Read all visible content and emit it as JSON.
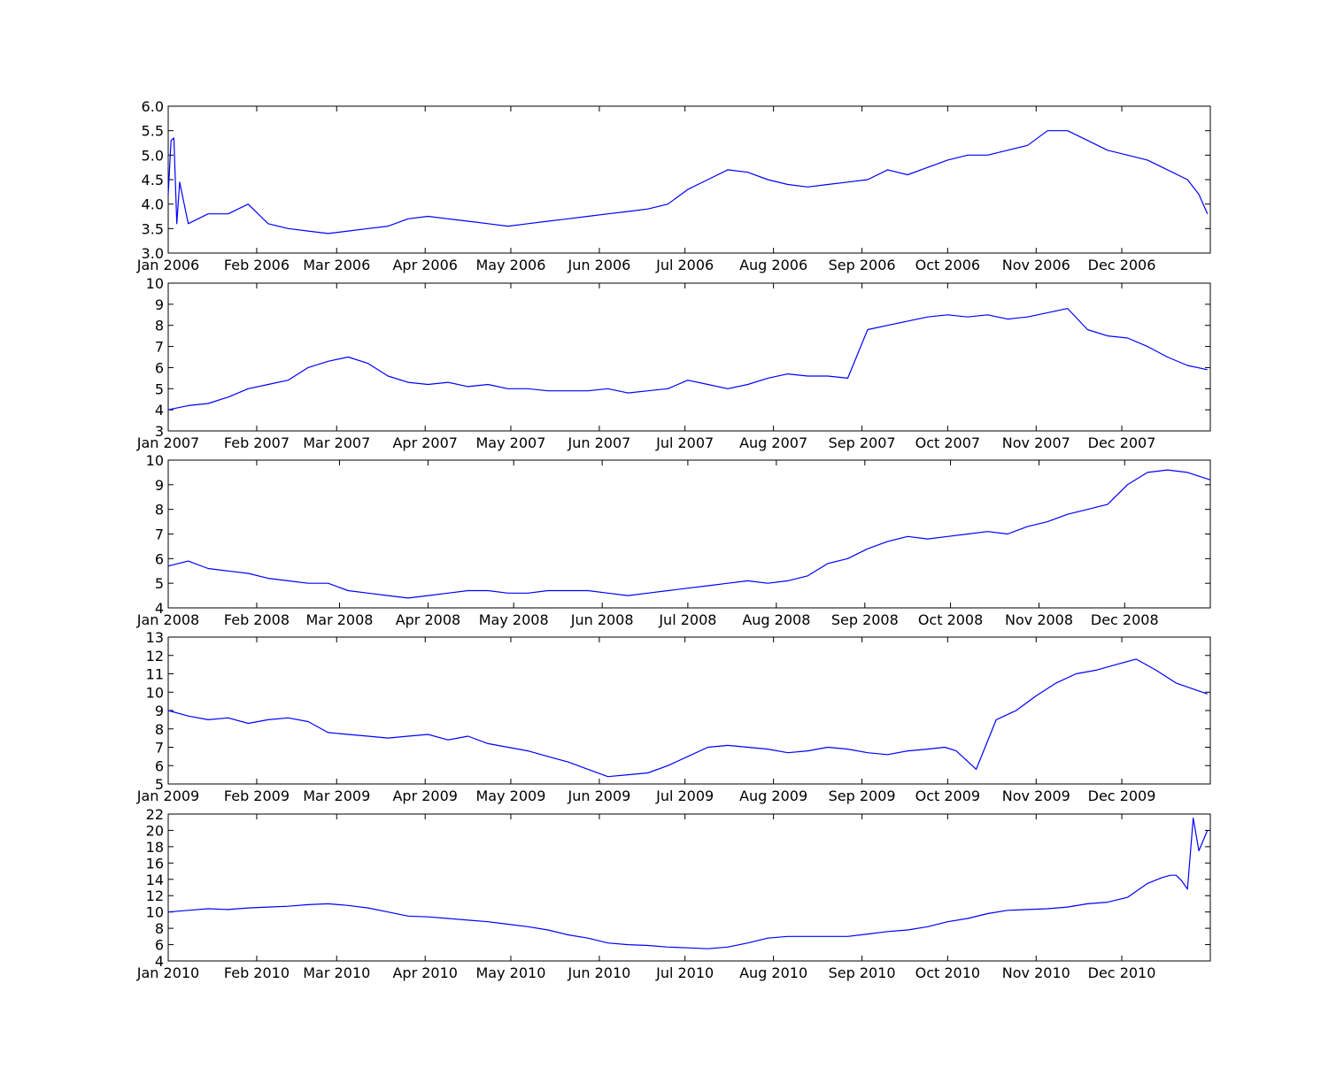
{
  "colors": {
    "series": "#0000ff",
    "background": "#ffffff",
    "axes": "#000000"
  },
  "chart_data": [
    {
      "type": "line",
      "title": "",
      "xlabel": "",
      "ylabel": "",
      "grid": false,
      "x_ticks": [
        "Jan 2006",
        "Feb 2006",
        "Mar 2006",
        "Apr 2006",
        "May 2006",
        "Jun 2006",
        "Jul 2006",
        "Aug 2006",
        "Sep 2006",
        "Oct 2006",
        "Nov 2006",
        "Dec 2006"
      ],
      "y_ticks": [
        "3.0",
        "3.5",
        "4.0",
        "4.5",
        "5.0",
        "5.5",
        "6.0"
      ],
      "ylim": [
        3.0,
        6.0
      ],
      "series": [
        {
          "x": [
            "2006-01-01",
            "2006-01-02",
            "2006-01-03",
            "2006-01-04",
            "2006-01-05",
            "2006-01-08",
            "2006-01-15",
            "2006-01-22",
            "2006-01-29",
            "2006-02-05",
            "2006-02-12",
            "2006-02-19",
            "2006-02-26",
            "2006-03-05",
            "2006-03-12",
            "2006-03-19",
            "2006-03-26",
            "2006-04-02",
            "2006-04-09",
            "2006-04-16",
            "2006-04-23",
            "2006-04-30",
            "2006-05-07",
            "2006-05-14",
            "2006-05-21",
            "2006-05-28",
            "2006-06-04",
            "2006-06-11",
            "2006-06-18",
            "2006-06-25",
            "2006-07-02",
            "2006-07-09",
            "2006-07-16",
            "2006-07-23",
            "2006-07-30",
            "2006-08-06",
            "2006-08-13",
            "2006-08-20",
            "2006-08-27",
            "2006-09-03",
            "2006-09-10",
            "2006-09-17",
            "2006-09-24",
            "2006-10-01",
            "2006-10-08",
            "2006-10-15",
            "2006-10-22",
            "2006-10-29",
            "2006-11-05",
            "2006-11-12",
            "2006-11-19",
            "2006-11-26",
            "2006-12-03",
            "2006-12-10",
            "2006-12-17",
            "2006-12-24",
            "2006-12-28",
            "2006-12-31"
          ],
          "y": [
            4.2,
            5.3,
            5.35,
            3.6,
            4.45,
            3.6,
            3.8,
            3.8,
            4.0,
            3.6,
            3.5,
            3.45,
            3.4,
            3.45,
            3.5,
            3.55,
            3.7,
            3.75,
            3.7,
            3.65,
            3.6,
            3.55,
            3.6,
            3.65,
            3.7,
            3.75,
            3.8,
            3.85,
            3.9,
            4.0,
            4.3,
            4.5,
            4.7,
            4.65,
            4.5,
            4.4,
            4.35,
            4.4,
            4.45,
            4.5,
            4.7,
            4.6,
            4.75,
            4.9,
            5.0,
            5.0,
            5.1,
            5.2,
            5.5,
            5.5,
            5.3,
            5.1,
            5.0,
            4.9,
            4.7,
            4.5,
            4.2,
            3.8
          ]
        }
      ]
    },
    {
      "type": "line",
      "title": "",
      "xlabel": "",
      "ylabel": "",
      "grid": false,
      "x_ticks": [
        "Jan 2007",
        "Feb 2007",
        "Mar 2007",
        "Apr 2007",
        "May 2007",
        "Jun 2007",
        "Jul 2007",
        "Aug 2007",
        "Sep 2007",
        "Oct 2007",
        "Nov 2007",
        "Dec 2007"
      ],
      "y_ticks": [
        "3",
        "4",
        "5",
        "6",
        "7",
        "8",
        "9",
        "10"
      ],
      "ylim": [
        3,
        10
      ],
      "series": [
        {
          "x": [
            "2007-01-01",
            "2007-01-08",
            "2007-01-15",
            "2007-01-22",
            "2007-01-29",
            "2007-02-05",
            "2007-02-12",
            "2007-02-19",
            "2007-02-26",
            "2007-03-05",
            "2007-03-12",
            "2007-03-19",
            "2007-03-26",
            "2007-04-02",
            "2007-04-09",
            "2007-04-16",
            "2007-04-23",
            "2007-04-30",
            "2007-05-07",
            "2007-05-14",
            "2007-05-21",
            "2007-05-28",
            "2007-06-04",
            "2007-06-11",
            "2007-06-18",
            "2007-06-25",
            "2007-07-02",
            "2007-07-09",
            "2007-07-16",
            "2007-07-23",
            "2007-07-30",
            "2007-08-06",
            "2007-08-13",
            "2007-08-20",
            "2007-08-27",
            "2007-09-03",
            "2007-09-10",
            "2007-09-17",
            "2007-09-24",
            "2007-10-01",
            "2007-10-08",
            "2007-10-15",
            "2007-10-22",
            "2007-10-29",
            "2007-11-05",
            "2007-11-12",
            "2007-11-19",
            "2007-11-26",
            "2007-12-03",
            "2007-12-10",
            "2007-12-17",
            "2007-12-24",
            "2007-12-31"
          ],
          "y": [
            4.0,
            4.2,
            4.3,
            4.6,
            5.0,
            5.2,
            5.4,
            6.0,
            6.3,
            6.5,
            6.2,
            5.6,
            5.3,
            5.2,
            5.3,
            5.1,
            5.2,
            5.0,
            5.0,
            4.9,
            4.9,
            4.9,
            5.0,
            4.8,
            4.9,
            5.0,
            5.4,
            5.2,
            5.0,
            5.2,
            5.5,
            5.7,
            5.6,
            5.6,
            5.5,
            7.8,
            8.0,
            8.2,
            8.4,
            8.5,
            8.4,
            8.5,
            8.3,
            8.4,
            8.6,
            8.8,
            7.8,
            7.5,
            7.4,
            7.0,
            6.5,
            6.1,
            5.9
          ]
        }
      ]
    },
    {
      "type": "line",
      "title": "",
      "xlabel": "",
      "ylabel": "",
      "grid": false,
      "x_ticks": [
        "Jan 2008",
        "Feb 2008",
        "Mar 2008",
        "Apr 2008",
        "May 2008",
        "Jun 2008",
        "Jul 2008",
        "Aug 2008",
        "Sep 2008",
        "Oct 2008",
        "Nov 2008",
        "Dec 2008"
      ],
      "y_ticks": [
        "4",
        "5",
        "6",
        "7",
        "8",
        "9",
        "10"
      ],
      "ylim": [
        4,
        10
      ],
      "series": [
        {
          "x": [
            "2008-01-01",
            "2008-01-08",
            "2008-01-15",
            "2008-01-22",
            "2008-01-29",
            "2008-02-05",
            "2008-02-12",
            "2008-02-19",
            "2008-02-26",
            "2008-03-04",
            "2008-03-11",
            "2008-03-18",
            "2008-03-25",
            "2008-04-01",
            "2008-04-08",
            "2008-04-15",
            "2008-04-22",
            "2008-04-29",
            "2008-05-06",
            "2008-05-13",
            "2008-05-20",
            "2008-05-27",
            "2008-06-03",
            "2008-06-10",
            "2008-06-17",
            "2008-06-24",
            "2008-07-01",
            "2008-07-08",
            "2008-07-15",
            "2008-07-22",
            "2008-07-29",
            "2008-08-05",
            "2008-08-12",
            "2008-08-19",
            "2008-08-26",
            "2008-09-02",
            "2008-09-09",
            "2008-09-16",
            "2008-09-23",
            "2008-09-30",
            "2008-10-07",
            "2008-10-14",
            "2008-10-21",
            "2008-10-28",
            "2008-11-04",
            "2008-11-11",
            "2008-11-18",
            "2008-11-25",
            "2008-12-02",
            "2008-12-09",
            "2008-12-16",
            "2008-12-23",
            "2008-12-31"
          ],
          "y": [
            5.7,
            5.9,
            5.6,
            5.5,
            5.4,
            5.2,
            5.1,
            5.0,
            5.0,
            4.7,
            4.6,
            4.5,
            4.4,
            4.5,
            4.6,
            4.7,
            4.7,
            4.6,
            4.6,
            4.7,
            4.7,
            4.7,
            4.6,
            4.5,
            4.6,
            4.7,
            4.8,
            4.9,
            5.0,
            5.1,
            5.0,
            5.1,
            5.3,
            5.8,
            6.0,
            6.4,
            6.7,
            6.9,
            6.8,
            6.9,
            7.0,
            7.1,
            7.0,
            7.3,
            7.5,
            7.8,
            8.0,
            8.2,
            9.0,
            9.5,
            9.6,
            9.5,
            9.2
          ]
        }
      ]
    },
    {
      "type": "line",
      "title": "",
      "xlabel": "",
      "ylabel": "",
      "grid": false,
      "x_ticks": [
        "Jan 2009",
        "Feb 2009",
        "Mar 2009",
        "Apr 2009",
        "May 2009",
        "Jun 2009",
        "Jul 2009",
        "Aug 2009",
        "Sep 2009",
        "Oct 2009",
        "Nov 2009",
        "Dec 2009"
      ],
      "y_ticks": [
        "5",
        "6",
        "7",
        "8",
        "9",
        "10",
        "11",
        "12",
        "13"
      ],
      "ylim": [
        5,
        13
      ],
      "series": [
        {
          "x": [
            "2009-01-01",
            "2009-01-08",
            "2009-01-15",
            "2009-01-22",
            "2009-01-29",
            "2009-02-05",
            "2009-02-12",
            "2009-02-19",
            "2009-02-26",
            "2009-03-05",
            "2009-03-12",
            "2009-03-19",
            "2009-03-26",
            "2009-04-02",
            "2009-04-09",
            "2009-04-16",
            "2009-04-23",
            "2009-04-30",
            "2009-05-07",
            "2009-05-14",
            "2009-05-21",
            "2009-05-28",
            "2009-06-04",
            "2009-06-11",
            "2009-06-18",
            "2009-06-25",
            "2009-07-02",
            "2009-07-09",
            "2009-07-16",
            "2009-07-23",
            "2009-07-30",
            "2009-08-06",
            "2009-08-13",
            "2009-08-20",
            "2009-08-27",
            "2009-09-03",
            "2009-09-10",
            "2009-09-17",
            "2009-09-24",
            "2009-09-30",
            "2009-10-04",
            "2009-10-11",
            "2009-10-18",
            "2009-10-25",
            "2009-11-01",
            "2009-11-08",
            "2009-11-15",
            "2009-11-22",
            "2009-11-29",
            "2009-12-06",
            "2009-12-13",
            "2009-12-20",
            "2009-12-31"
          ],
          "y": [
            9.0,
            8.7,
            8.5,
            8.6,
            8.3,
            8.5,
            8.6,
            8.4,
            7.8,
            7.7,
            7.6,
            7.5,
            7.6,
            7.7,
            7.4,
            7.6,
            7.2,
            7.0,
            6.8,
            6.5,
            6.2,
            5.8,
            5.4,
            5.5,
            5.6,
            6.0,
            6.5,
            7.0,
            7.1,
            7.0,
            6.9,
            6.7,
            6.8,
            7.0,
            6.9,
            6.7,
            6.6,
            6.8,
            6.9,
            7.0,
            6.8,
            5.8,
            8.5,
            9.0,
            9.8,
            10.5,
            11.0,
            11.2,
            11.5,
            11.8,
            11.2,
            10.5,
            9.9
          ]
        }
      ]
    },
    {
      "type": "line",
      "title": "",
      "xlabel": "",
      "ylabel": "",
      "grid": false,
      "x_ticks": [
        "Jan 2010",
        "Feb 2010",
        "Mar 2010",
        "Apr 2010",
        "May 2010",
        "Jun 2010",
        "Jul 2010",
        "Aug 2010",
        "Sep 2010",
        "Oct 2010",
        "Nov 2010",
        "Dec 2010"
      ],
      "y_ticks": [
        "4",
        "6",
        "8",
        "10",
        "12",
        "14",
        "16",
        "18",
        "20",
        "22"
      ],
      "ylim": [
        4,
        22
      ],
      "series": [
        {
          "x": [
            "2010-01-01",
            "2010-01-08",
            "2010-01-15",
            "2010-01-22",
            "2010-01-29",
            "2010-02-05",
            "2010-02-12",
            "2010-02-19",
            "2010-02-26",
            "2010-03-05",
            "2010-03-12",
            "2010-03-19",
            "2010-03-26",
            "2010-04-02",
            "2010-04-09",
            "2010-04-16",
            "2010-04-23",
            "2010-04-30",
            "2010-05-07",
            "2010-05-14",
            "2010-05-21",
            "2010-05-28",
            "2010-06-04",
            "2010-06-11",
            "2010-06-18",
            "2010-06-25",
            "2010-07-02",
            "2010-07-09",
            "2010-07-16",
            "2010-07-23",
            "2010-07-30",
            "2010-08-06",
            "2010-08-13",
            "2010-08-20",
            "2010-08-27",
            "2010-09-03",
            "2010-09-10",
            "2010-09-17",
            "2010-09-24",
            "2010-10-01",
            "2010-10-08",
            "2010-10-15",
            "2010-10-22",
            "2010-10-29",
            "2010-11-05",
            "2010-11-12",
            "2010-11-19",
            "2010-11-26",
            "2010-12-03",
            "2010-12-10",
            "2010-12-15",
            "2010-12-18",
            "2010-12-20",
            "2010-12-22",
            "2010-12-24",
            "2010-12-26",
            "2010-12-28",
            "2010-12-31"
          ],
          "y": [
            10.0,
            10.2,
            10.4,
            10.3,
            10.5,
            10.6,
            10.7,
            10.9,
            11.0,
            10.8,
            10.5,
            10.0,
            9.5,
            9.4,
            9.2,
            9.0,
            8.8,
            8.5,
            8.2,
            7.8,
            7.2,
            6.8,
            6.2,
            6.0,
            5.9,
            5.7,
            5.6,
            5.5,
            5.7,
            6.2,
            6.8,
            7.0,
            7.0,
            7.0,
            7.0,
            7.3,
            7.6,
            7.8,
            8.2,
            8.8,
            9.2,
            9.8,
            10.2,
            10.3,
            10.4,
            10.6,
            11.0,
            11.2,
            11.8,
            13.5,
            14.2,
            14.5,
            14.5,
            13.8,
            12.8,
            21.5,
            17.5,
            20.0
          ]
        }
      ]
    }
  ]
}
